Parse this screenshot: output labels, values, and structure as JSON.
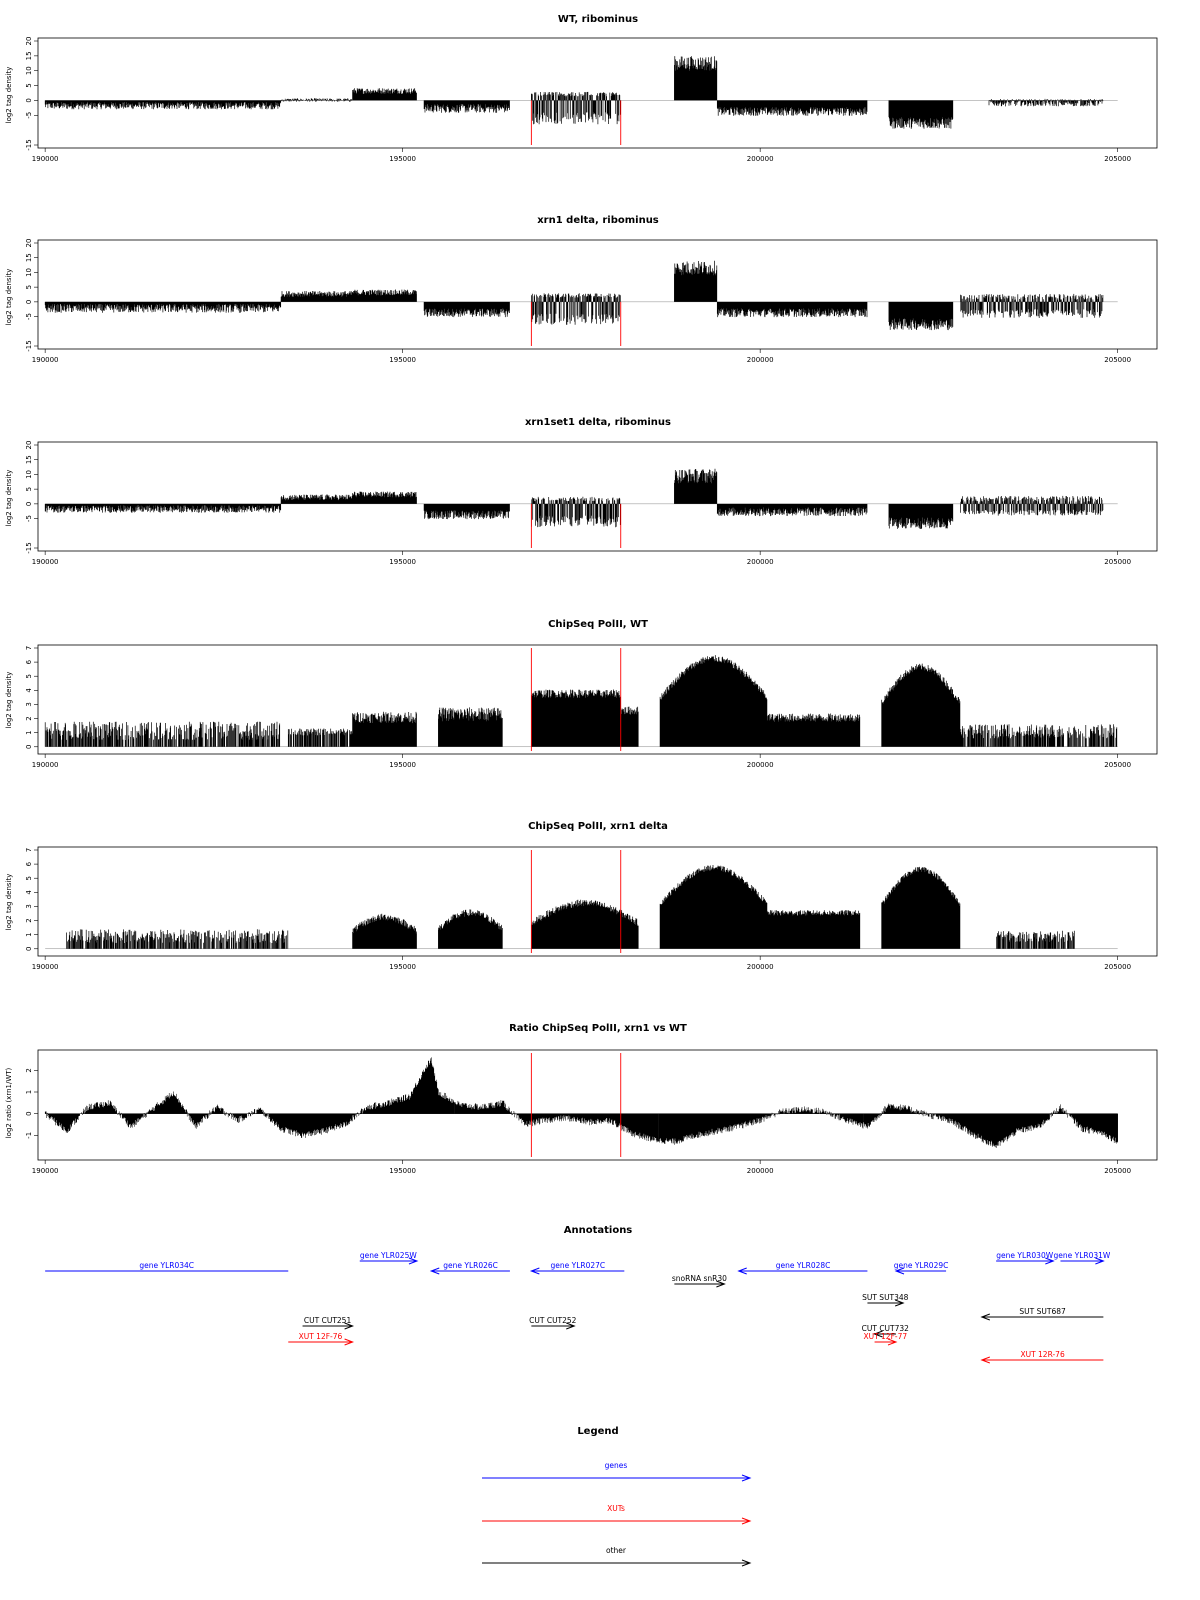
{
  "colors": {
    "genes": "#0000ff",
    "xuts": "#ff0000",
    "other": "#000000",
    "marker": "#ff0000",
    "signal": "#000000"
  },
  "chart_data": [
    {
      "id": "wt",
      "type": "bar",
      "title": "WT, ribominus",
      "ylabel": "log2 tag density",
      "xlim": [
        189900,
        205550
      ],
      "ylim": [
        -15,
        20
      ],
      "yticks": [
        "-15",
        "-5",
        "0",
        "5",
        "10",
        "15",
        "20"
      ],
      "xticks": [
        "190000",
        "195000",
        "200000",
        "205000"
      ],
      "markers": [
        196800,
        198050
      ],
      "segments": [
        {
          "x": [
            190000,
            193300
          ],
          "level": -2,
          "amp": 2.5
        },
        {
          "x": [
            193300,
            194300
          ],
          "level": 0,
          "amp": 1.2
        },
        {
          "x": [
            194300,
            195200
          ],
          "level": 3,
          "amp": 2
        },
        {
          "x": [
            195300,
            196500
          ],
          "level": -3,
          "amp": 3
        },
        {
          "x": [
            196800,
            198050
          ],
          "level": 2,
          "amp": 1.5,
          "neg": -6,
          "namp": 4
        },
        {
          "x": [
            198800,
            199400
          ],
          "level": 12,
          "amp": 5
        },
        {
          "x": [
            199400,
            201500
          ],
          "level": -4,
          "amp": 3
        },
        {
          "x": [
            201800,
            202700
          ],
          "level": -8,
          "amp": 4
        },
        {
          "x": [
            203200,
            204800
          ],
          "level": -1,
          "amp": 2.5
        }
      ]
    },
    {
      "id": "xrn1",
      "type": "bar",
      "title": "xrn1 delta, ribominus",
      "ylabel": "log2 tag density",
      "xlim": [
        189900,
        205550
      ],
      "ylim": [
        -15,
        20
      ],
      "yticks": [
        "-15",
        "-5",
        "0",
        "5",
        "10",
        "15",
        "20"
      ],
      "xticks": [
        "190000",
        "195000",
        "200000",
        "205000"
      ],
      "markers": [
        196800,
        198050
      ],
      "segments": [
        {
          "x": [
            190000,
            193300
          ],
          "level": -2.5,
          "amp": 3
        },
        {
          "x": [
            193300,
            194300
          ],
          "level": 2.5,
          "amp": 2
        },
        {
          "x": [
            194300,
            195200
          ],
          "level": 3,
          "amp": 2
        },
        {
          "x": [
            195300,
            196500
          ],
          "level": -4,
          "amp": 3
        },
        {
          "x": [
            196800,
            198050
          ],
          "level": 2,
          "amp": 1.5,
          "neg": -6,
          "namp": 4
        },
        {
          "x": [
            198800,
            199400
          ],
          "level": 11,
          "amp": 5
        },
        {
          "x": [
            199400,
            201500
          ],
          "level": -4,
          "amp": 3
        },
        {
          "x": [
            201800,
            202700
          ],
          "level": -8,
          "amp": 4
        },
        {
          "x": [
            202800,
            204800
          ],
          "level": 1.5,
          "amp": 2,
          "neg": -4,
          "namp": 3
        }
      ]
    },
    {
      "id": "xrn1set1",
      "type": "bar",
      "title": "xrn1set1 delta, ribominus",
      "ylabel": "log2 tag density",
      "xlim": [
        189900,
        205550
      ],
      "ylim": [
        -15,
        20
      ],
      "yticks": [
        "-15",
        "-5",
        "0",
        "5",
        "10",
        "15",
        "20"
      ],
      "xticks": [
        "190000",
        "195000",
        "200000",
        "205000"
      ],
      "markers": [
        196800,
        198050
      ],
      "segments": [
        {
          "x": [
            190000,
            193300
          ],
          "level": -2,
          "amp": 2.5
        },
        {
          "x": [
            193300,
            194300
          ],
          "level": 2,
          "amp": 2
        },
        {
          "x": [
            194300,
            195200
          ],
          "level": 3,
          "amp": 2
        },
        {
          "x": [
            195300,
            196500
          ],
          "level": -4,
          "amp": 3
        },
        {
          "x": [
            196800,
            198050
          ],
          "level": 1.5,
          "amp": 1.5,
          "neg": -6,
          "namp": 4
        },
        {
          "x": [
            198800,
            199400
          ],
          "level": 9,
          "amp": 5
        },
        {
          "x": [
            199400,
            201500
          ],
          "level": -3,
          "amp": 3
        },
        {
          "x": [
            201800,
            202700
          ],
          "level": -7,
          "amp": 4
        },
        {
          "x": [
            202800,
            204800
          ],
          "level": 1.5,
          "amp": 2,
          "neg": -3,
          "namp": 2
        }
      ]
    },
    {
      "id": "chip_wt",
      "type": "bar",
      "title": "ChipSeq PolII, WT",
      "ylabel": "log2 tag density",
      "xlim": [
        189900,
        205550
      ],
      "ylim": [
        -0.3,
        7
      ],
      "yticks": [
        "0",
        "1",
        "2",
        "3",
        "4",
        "5",
        "6",
        "7"
      ],
      "xticks": [
        "190000",
        "195000",
        "200000",
        "205000"
      ],
      "markers": [
        196800,
        198050
      ],
      "segments": [
        {
          "x": [
            190000,
            193300
          ],
          "level": 1,
          "amp": 1.3,
          "sparse": true
        },
        {
          "x": [
            193400,
            194300
          ],
          "level": 1,
          "amp": 0.5,
          "sparse": true
        },
        {
          "x": [
            194300,
            195200
          ],
          "level": 2,
          "amp": 0.8
        },
        {
          "x": [
            195500,
            196400
          ],
          "level": 2.2,
          "amp": 1
        },
        {
          "x": [
            196800,
            198050
          ],
          "level": 3.7,
          "amp": 0.6
        },
        {
          "x": [
            198050,
            198300
          ],
          "level": 2.5,
          "amp": 0.6
        },
        {
          "x": [
            198600,
            200100
          ],
          "level": 6.2,
          "amp": 0.5,
          "dome": true
        },
        {
          "x": [
            200100,
            201400
          ],
          "level": 2,
          "amp": 0.6
        },
        {
          "x": [
            201700,
            202800
          ],
          "level": 5.6,
          "amp": 0.5,
          "dome": true
        },
        {
          "x": [
            202800,
            205000
          ],
          "level": 1,
          "amp": 1,
          "sparse": true
        }
      ]
    },
    {
      "id": "chip_xrn1",
      "type": "bar",
      "title": "ChipSeq PolII, xrn1 delta",
      "ylabel": "log2 tag density",
      "xlim": [
        189900,
        205550
      ],
      "ylim": [
        -0.3,
        7
      ],
      "yticks": [
        "0",
        "1",
        "2",
        "3",
        "4",
        "5",
        "6",
        "7"
      ],
      "xticks": [
        "190000",
        "195000",
        "200000",
        "205000"
      ],
      "markers": [
        196800,
        198050
      ],
      "segments": [
        {
          "x": [
            190300,
            193400
          ],
          "level": 0.8,
          "amp": 1,
          "sparse": true
        },
        {
          "x": [
            194300,
            195200
          ],
          "level": 2.2,
          "amp": 0.5,
          "dome": true
        },
        {
          "x": [
            195500,
            196400
          ],
          "level": 2.5,
          "amp": 0.5,
          "dome": true
        },
        {
          "x": [
            196800,
            198300
          ],
          "level": 3.2,
          "amp": 0.5,
          "dome": true
        },
        {
          "x": [
            198600,
            200100
          ],
          "level": 5.7,
          "amp": 0.4,
          "dome": true
        },
        {
          "x": [
            200100,
            201400
          ],
          "level": 2.5,
          "amp": 0.4
        },
        {
          "x": [
            201700,
            202800
          ],
          "level": 5.6,
          "amp": 0.4,
          "dome": true
        },
        {
          "x": [
            203300,
            204400
          ],
          "level": 0.8,
          "amp": 0.8,
          "sparse": true
        }
      ]
    },
    {
      "id": "ratio",
      "type": "area",
      "title": "Ratio ChipSeq PolII, xrn1 vs WT",
      "ylabel": "log2 ratio (xrn1/WT)",
      "xlim": [
        189900,
        205550
      ],
      "ylim": [
        -2,
        2.8
      ],
      "yticks": [
        "-1",
        "0",
        "1",
        "2"
      ],
      "xticks": [
        "190000",
        "195000",
        "200000",
        "205000"
      ],
      "markers": [
        196800,
        198050
      ],
      "x": [
        190000,
        190300,
        190600,
        190900,
        191200,
        191500,
        191800,
        192100,
        192400,
        192700,
        193000,
        193300,
        193600,
        193900,
        194200,
        194500,
        194800,
        195100,
        195300,
        195400,
        195500,
        195800,
        196100,
        196400,
        196700,
        197000,
        197300,
        197600,
        197900,
        198200,
        198500,
        198800,
        199100,
        199400,
        199700,
        200000,
        200300,
        200600,
        200900,
        201200,
        201500,
        201800,
        202100,
        202400,
        202700,
        203000,
        203300,
        203600,
        203900,
        204200,
        204500,
        204800,
        205000
      ],
      "y": [
        0,
        -0.8,
        0.3,
        0.5,
        -0.6,
        0.2,
        1.0,
        -0.6,
        0.3,
        -0.3,
        0.2,
        -0.7,
        -1.0,
        -0.8,
        -0.5,
        0.3,
        0.5,
        0.8,
        2.0,
        2.5,
        1.0,
        0.4,
        0.3,
        0.5,
        -0.5,
        -0.3,
        -0.2,
        -0.4,
        -0.3,
        -0.9,
        -1.2,
        -1.3,
        -1.0,
        -0.8,
        -0.6,
        -0.3,
        0.1,
        0.2,
        0.1,
        -0.3,
        -0.6,
        0.4,
        0.2,
        -0.1,
        -0.4,
        -1.0,
        -1.5,
        -0.8,
        -0.6,
        0.3,
        -0.7,
        -0.9,
        -1.3
      ]
    },
    {
      "id": "annotations",
      "type": "diagram",
      "title": "Annotations",
      "features": [
        {
          "label": "gene YLR034C",
          "kind": "genes",
          "x1": 190000,
          "x2": 193400,
          "row": 1,
          "dir": "none"
        },
        {
          "label": "gene YLR025W",
          "kind": "genes",
          "x1": 194400,
          "x2": 195200,
          "row": 0,
          "dir": "right"
        },
        {
          "label": "gene YLR026C",
          "kind": "genes",
          "x1": 195400,
          "x2": 196500,
          "row": 1,
          "dir": "left"
        },
        {
          "label": "gene YLR027C",
          "kind": "genes",
          "x1": 196800,
          "x2": 198100,
          "row": 1,
          "dir": "left"
        },
        {
          "label": "snoRNA snR30",
          "kind": "other",
          "x1": 198800,
          "x2": 199500,
          "row": 2,
          "dir": "right"
        },
        {
          "label": "gene YLR028C",
          "kind": "genes",
          "x1": 199700,
          "x2": 201500,
          "row": 1,
          "dir": "left"
        },
        {
          "label": "gene YLR029C",
          "kind": "genes",
          "x1": 201900,
          "x2": 202600,
          "row": 1,
          "dir": "left"
        },
        {
          "label": "gene YLR030W",
          "kind": "genes",
          "x1": 203300,
          "x2": 204100,
          "row": 0,
          "dir": "right"
        },
        {
          "label": "gene YLR031W",
          "kind": "genes",
          "x1": 204200,
          "x2": 204800,
          "row": 0,
          "dir": "right"
        },
        {
          "label": "SUT SUT348",
          "kind": "other",
          "x1": 201500,
          "x2": 202000,
          "row": 3,
          "dir": "right"
        },
        {
          "label": "SUT SUT687",
          "kind": "other",
          "x1": 203100,
          "x2": 204800,
          "row": 4,
          "dir": "left"
        },
        {
          "label": "CUT CUT251",
          "kind": "other",
          "x1": 193600,
          "x2": 194300,
          "row": 5,
          "dir": "right"
        },
        {
          "label": "CUT CUT252",
          "kind": "other",
          "x1": 196800,
          "x2": 197400,
          "row": 5,
          "dir": "right"
        },
        {
          "label": "CUT CUT732",
          "kind": "other",
          "x1": 201600,
          "x2": 201900,
          "row": 6,
          "dir": "left"
        },
        {
          "label": "XUT 12F-76",
          "kind": "xuts",
          "x1": 193400,
          "x2": 194300,
          "row": 7,
          "dir": "right"
        },
        {
          "label": "XUT 12F-77",
          "kind": "xuts",
          "x1": 201600,
          "x2": 201900,
          "row": 7,
          "dir": "right"
        },
        {
          "label": "XUT 12R-76",
          "kind": "xuts",
          "x1": 203100,
          "x2": 204800,
          "row": 8,
          "dir": "left"
        }
      ]
    },
    {
      "id": "legend",
      "type": "legend",
      "title": "Legend",
      "items": [
        {
          "label": "genes",
          "kind": "genes"
        },
        {
          "label": "XUTs",
          "kind": "xuts"
        },
        {
          "label": "other",
          "kind": "other"
        }
      ]
    }
  ]
}
